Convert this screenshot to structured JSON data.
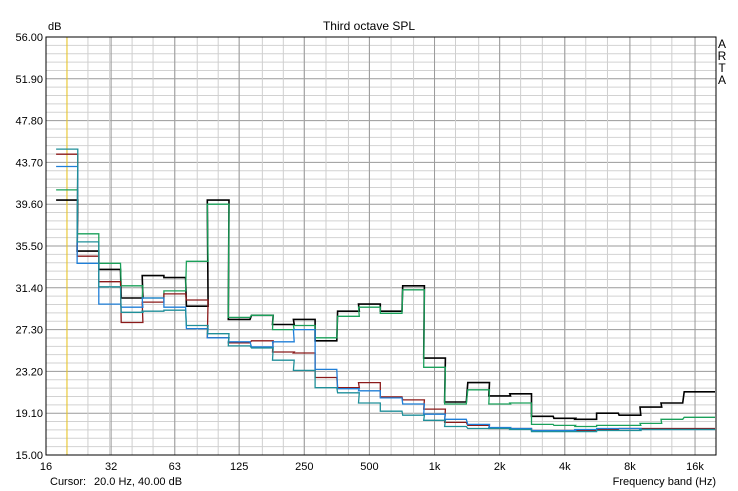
{
  "chart_data": {
    "type": "line",
    "title": "Third octave SPL",
    "ylabel": "dB",
    "xlabel": "Frequency band (Hz)",
    "side_label": [
      "A",
      "R",
      "T",
      "A"
    ],
    "cursor_label": "Cursor:",
    "cursor_value": "20.0 Hz, 40.00 dB",
    "cursor_x": 20,
    "ylim": [
      15.0,
      56.0
    ],
    "xlim": [
      16,
      20000
    ],
    "x_scale": "log",
    "y_ticks": [
      "56.00",
      "51.90",
      "47.80",
      "43.70",
      "39.60",
      "35.50",
      "31.40",
      "27.30",
      "23.20",
      "19.10",
      "15.00"
    ],
    "x_tick_labels": [
      {
        "f": 16,
        "label": "16"
      },
      {
        "f": 32,
        "label": "32"
      },
      {
        "f": 63,
        "label": "63"
      },
      {
        "f": 125,
        "label": "125"
      },
      {
        "f": 250,
        "label": "250"
      },
      {
        "f": 500,
        "label": "500"
      },
      {
        "f": 1000,
        "label": "1k"
      },
      {
        "f": 2000,
        "label": "2k"
      },
      {
        "f": 4000,
        "label": "4k"
      },
      {
        "f": 8000,
        "label": "8k"
      },
      {
        "f": 16000,
        "label": "16k"
      }
    ],
    "grid": true,
    "bands": [
      20,
      25,
      31.5,
      40,
      50,
      63,
      80,
      100,
      125,
      160,
      200,
      250,
      315,
      400,
      500,
      630,
      800,
      1000,
      1250,
      1600,
      2000,
      2500,
      3150,
      4000,
      5000,
      6300,
      8000,
      10000,
      12500,
      16000,
      20000
    ],
    "series": [
      {
        "color": "#000000",
        "values": [
          40.0,
          35.0,
          33.2,
          30.4,
          32.6,
          32.4,
          29.6,
          40.0,
          28.3,
          28.7,
          27.8,
          28.3,
          26.2,
          29.1,
          29.8,
          29.1,
          31.6,
          24.5,
          20.2,
          22.1,
          20.8,
          21.0,
          18.8,
          18.6,
          18.5,
          19.1,
          18.9,
          19.7,
          20.1,
          21.2,
          21.2
        ]
      },
      {
        "color": "#1aa05a",
        "values": [
          41.0,
          36.7,
          33.8,
          31.6,
          30.4,
          31.1,
          34.0,
          39.6,
          28.5,
          28.7,
          27.3,
          27.7,
          26.5,
          28.6,
          29.5,
          28.9,
          31.2,
          23.6,
          20.0,
          21.4,
          20.0,
          20.1,
          18.0,
          17.9,
          17.8,
          17.9,
          17.9,
          18.1,
          18.5,
          18.7,
          18.7
        ]
      },
      {
        "color": "#8b1a1a",
        "values": [
          44.5,
          34.5,
          32.0,
          28.0,
          30.0,
          30.8,
          30.2,
          26.5,
          26.0,
          26.2,
          25.1,
          25.0,
          22.6,
          21.6,
          22.1,
          20.7,
          20.4,
          19.5,
          18.2,
          17.9,
          17.6,
          17.6,
          17.4,
          17.4,
          17.4,
          17.5,
          17.6,
          17.6,
          17.6,
          17.6,
          17.6
        ]
      },
      {
        "color": "#1f7fd8",
        "values": [
          43.3,
          33.8,
          29.8,
          29.5,
          30.4,
          29.5,
          27.4,
          26.5,
          26.1,
          25.6,
          26.1,
          27.3,
          23.4,
          21.5,
          21.3,
          20.6,
          20.0,
          19.0,
          18.5,
          18.0,
          17.7,
          17.6,
          17.4,
          17.4,
          17.5,
          17.6,
          17.6,
          17.5,
          17.5,
          17.5,
          17.5
        ]
      },
      {
        "color": "#1f8f99",
        "values": [
          45.0,
          35.9,
          31.5,
          29.0,
          29.1,
          29.2,
          27.7,
          26.9,
          25.7,
          25.5,
          24.3,
          23.3,
          21.6,
          21.1,
          20.1,
          19.3,
          18.9,
          18.4,
          17.8,
          17.6,
          17.6,
          17.5,
          17.3,
          17.3,
          17.3,
          17.4,
          17.4,
          17.5,
          17.5,
          17.5,
          17.5
        ]
      }
    ]
  }
}
